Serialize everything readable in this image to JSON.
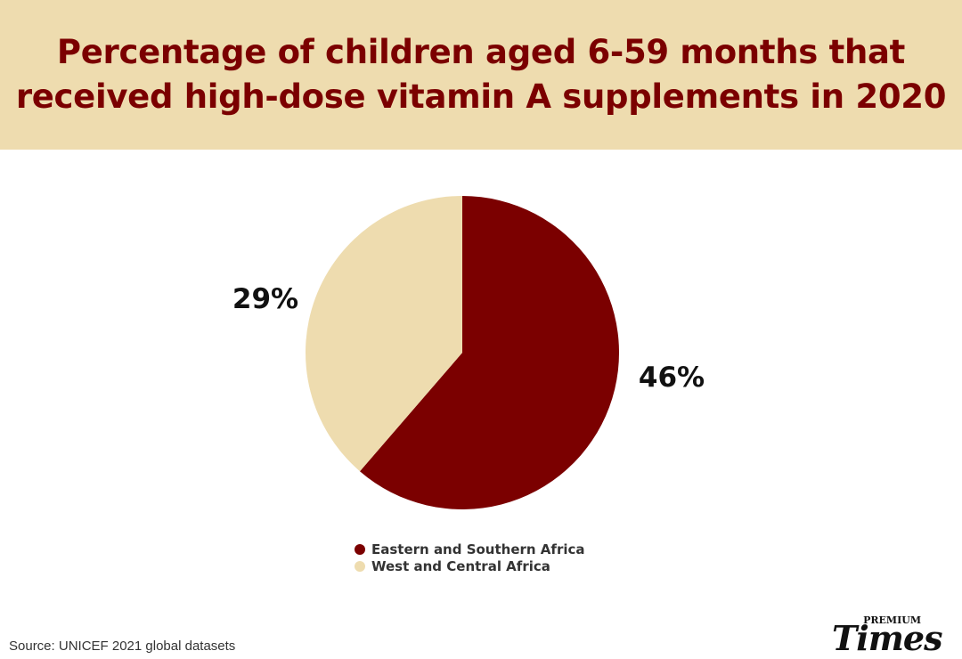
{
  "title": {
    "line1": "Percentage of children aged 6-59 months that",
    "line2": "received high-dose vitamin A supplements in 2020"
  },
  "chart_data": {
    "type": "pie",
    "title": "Percentage of children aged 6-59 months that received high-dose vitamin A supplements in 2020",
    "slices": [
      {
        "name": "Eastern and Southern Africa",
        "value": 46,
        "label": "46%",
        "color": "#7b0000"
      },
      {
        "name": "West and Central Africa",
        "value": 29,
        "label": "29%",
        "color": "#eedcaf"
      }
    ],
    "legend_position": "bottom-center"
  },
  "legend": {
    "items": [
      {
        "label": "Eastern and Southern Africa",
        "color": "#7b0000"
      },
      {
        "label": "West and Central Africa",
        "color": "#eedcaf"
      }
    ]
  },
  "source": "Source: UNICEF 2021 global datasets",
  "logo": {
    "premium": "PREMIUM",
    "times": "Times"
  },
  "colors": {
    "header_bg": "#eedcaf",
    "title": "#7b0000"
  }
}
